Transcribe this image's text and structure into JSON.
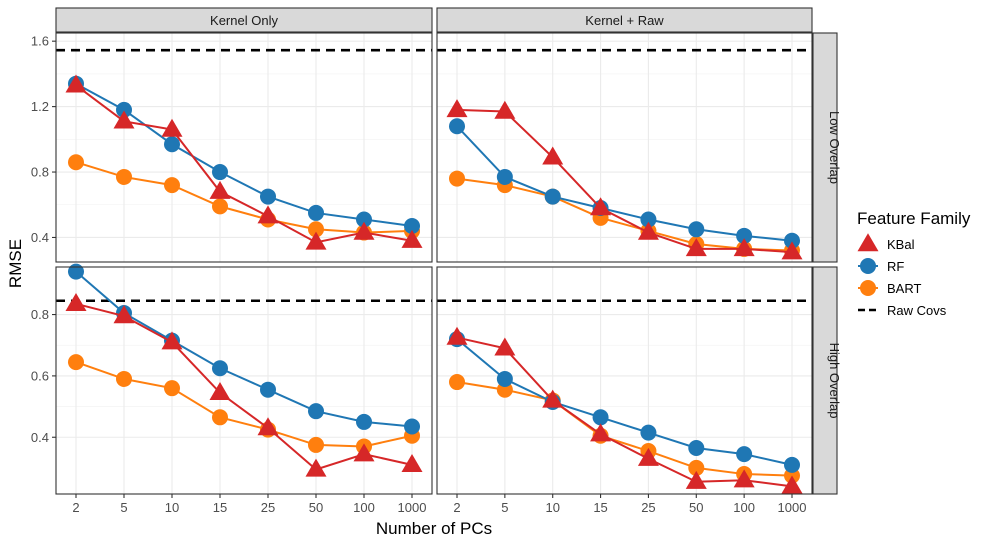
{
  "chart_data": {
    "type": "line",
    "title": "",
    "xlabel": "Number of PCs",
    "ylabel": "RMSE",
    "categories": [
      "2",
      "5",
      "10",
      "15",
      "25",
      "50",
      "100",
      "1000"
    ],
    "legend": {
      "title": "Feature Family",
      "placement": "right",
      "entries": [
        {
          "name": "KBal",
          "color": "#D62728",
          "shape": "triangle"
        },
        {
          "name": "RF",
          "color": "#1F77B4",
          "shape": "circle"
        },
        {
          "name": "BART",
          "color": "#FF7F0E",
          "shape": "circle"
        },
        {
          "name": "Raw Covs",
          "color": "#000000",
          "shape": "dashed-line"
        }
      ]
    },
    "columns": [
      "Kernel Only",
      "Kernel + Raw"
    ],
    "rows": [
      "Low Overlap",
      "High Overlap"
    ],
    "row_axes": [
      {
        "ylim": [
          0.25,
          1.65
        ],
        "ticks": [
          0.4,
          0.8,
          1.2,
          1.6
        ],
        "tick_labels": [
          "0.4",
          "0.8",
          "1.2",
          "1.6"
        ],
        "raw_covs": 1.545
      },
      {
        "ylim": [
          0.215,
          0.955
        ],
        "ticks": [
          0.4,
          0.6,
          0.8
        ],
        "tick_labels": [
          "0.4",
          "0.6",
          "0.8"
        ],
        "raw_covs": 0.845
      }
    ],
    "panels": [
      {
        "column": "Kernel Only",
        "row": "Low Overlap",
        "series": [
          {
            "name": "KBal",
            "values": [
              1.33,
              1.11,
              1.06,
              0.68,
              0.53,
              0.37,
              0.43,
              0.38
            ]
          },
          {
            "name": "RF",
            "values": [
              1.34,
              1.18,
              0.97,
              0.8,
              0.65,
              0.55,
              0.51,
              0.47
            ]
          },
          {
            "name": "BART",
            "values": [
              0.86,
              0.77,
              0.72,
              0.59,
              0.51,
              0.45,
              0.43,
              0.44
            ]
          }
        ]
      },
      {
        "column": "Kernel + Raw",
        "row": "Low Overlap",
        "series": [
          {
            "name": "KBal",
            "values": [
              1.18,
              1.17,
              0.89,
              0.58,
              0.43,
              0.33,
              0.33,
              0.31
            ]
          },
          {
            "name": "RF",
            "values": [
              1.08,
              0.77,
              0.65,
              0.58,
              0.51,
              0.45,
              0.41,
              0.38
            ]
          },
          {
            "name": "BART",
            "values": [
              0.76,
              0.72,
              0.65,
              0.52,
              0.44,
              0.36,
              0.33,
              0.32
            ]
          }
        ]
      },
      {
        "column": "Kernel Only",
        "row": "High Overlap",
        "series": [
          {
            "name": "KBal",
            "values": [
              0.835,
              0.795,
              0.71,
              0.545,
              0.43,
              0.295,
              0.345,
              0.31
            ]
          },
          {
            "name": "RF",
            "values": [
              0.94,
              0.805,
              0.715,
              0.625,
              0.555,
              0.485,
              0.45,
              0.435
            ]
          },
          {
            "name": "BART",
            "values": [
              0.645,
              0.59,
              0.56,
              0.465,
              0.425,
              0.375,
              0.37,
              0.405
            ]
          }
        ]
      },
      {
        "column": "Kernel + Raw",
        "row": "High Overlap",
        "series": [
          {
            "name": "KBal",
            "values": [
              0.725,
              0.69,
              0.52,
              0.41,
              0.33,
              0.255,
              0.26,
              0.24
            ]
          },
          {
            "name": "RF",
            "values": [
              0.72,
              0.59,
              0.515,
              0.465,
              0.415,
              0.365,
              0.345,
              0.31
            ]
          },
          {
            "name": "BART",
            "values": [
              0.58,
              0.555,
              0.52,
              0.405,
              0.355,
              0.3,
              0.28,
              0.275
            ]
          }
        ]
      }
    ]
  }
}
